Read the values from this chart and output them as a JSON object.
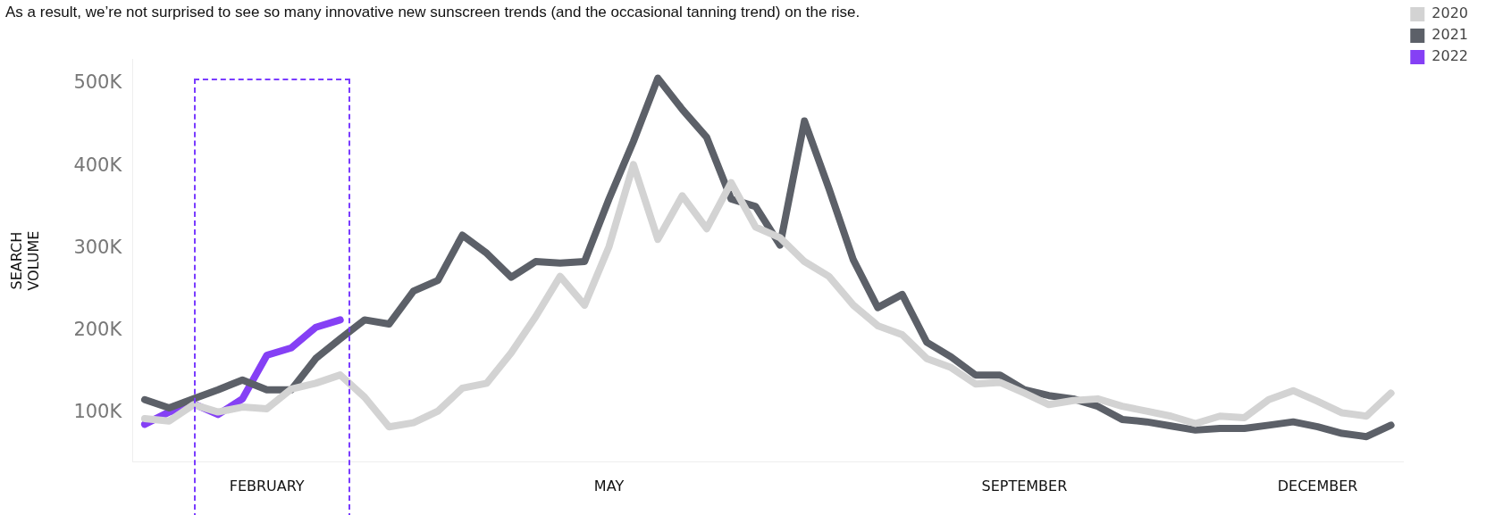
{
  "chart_data": {
    "type": "line",
    "title": "As a result, we’re not surprised to see so many innovative new sunscreen trends (and the occasional tanning trend) on the rise.",
    "ylabel": "SEARCH VOLUME",
    "categories": [
      null,
      null,
      null,
      null,
      null,
      "FEBRUARY",
      null,
      null,
      null,
      null,
      null,
      null,
      null,
      null,
      null,
      null,
      null,
      null,
      null,
      "MAY",
      null,
      null,
      null,
      null,
      null,
      null,
      null,
      null,
      null,
      null,
      null,
      null,
      null,
      null,
      null,
      null,
      "SEPTEMBER",
      null,
      null,
      null,
      null,
      null,
      null,
      null,
      null,
      null,
      null,
      null,
      "DECEMBER",
      null,
      null,
      null
    ],
    "series": [
      {
        "name": "2020",
        "color": "#d3d3d3",
        "values": [
          93000,
          90000,
          110000,
          101000,
          107000,
          105000,
          129000,
          136000,
          146000,
          119000,
          83000,
          88000,
          102000,
          130000,
          136000,
          173000,
          217000,
          266000,
          231000,
          302000,
          402000,
          311000,
          364000,
          324000,
          380000,
          326000,
          313000,
          284000,
          266000,
          231000,
          206000,
          195000,
          166000,
          155000,
          135000,
          137000,
          124000,
          110000,
          115000,
          117000,
          108000,
          102000,
          96000,
          87000,
          96000,
          94000,
          116000,
          127000,
          114000,
          100000,
          96000,
          124000
        ]
      },
      {
        "name": "2021",
        "color": "#5c6068",
        "values": [
          116000,
          106000,
          117000,
          128000,
          140000,
          128000,
          128000,
          166000,
          190000,
          213000,
          208000,
          248000,
          261000,
          316000,
          294000,
          265000,
          284000,
          282000,
          284000,
          360000,
          430000,
          507000,
          469000,
          435000,
          360000,
          351000,
          304000,
          455000,
          373000,
          286000,
          228000,
          244000,
          186000,
          168000,
          146000,
          146000,
          128000,
          121000,
          117000,
          108000,
          92000,
          89000,
          84000,
          79000,
          81000,
          81000,
          85000,
          89000,
          83000,
          75000,
          71000,
          85000
        ]
      },
      {
        "name": "2022",
        "color": "#8540f5",
        "values": [
          86000,
          101000,
          111000,
          98000,
          117000,
          170000,
          179000,
          204000,
          213000,
          null,
          null,
          null,
          null,
          null,
          null,
          null,
          null,
          null,
          null,
          null,
          null,
          null,
          null,
          null,
          null,
          null,
          null,
          null,
          null,
          null,
          null,
          null,
          null,
          null,
          null,
          null,
          null,
          null,
          null,
          null,
          null,
          null,
          null,
          null,
          null,
          null,
          null,
          null,
          null,
          null,
          null,
          null
        ]
      }
    ],
    "ylim": [
      40000,
      530000
    ],
    "yticks": [
      {
        "value": 100000,
        "label": "100K"
      },
      {
        "value": 200000,
        "label": "200K"
      },
      {
        "value": 300000,
        "label": "300K"
      },
      {
        "value": 400000,
        "label": "400K"
      },
      {
        "value": 500000,
        "label": "500K"
      }
    ],
    "grid": false,
    "legend": "top right",
    "marker": "none",
    "line_style": "solid"
  }
}
